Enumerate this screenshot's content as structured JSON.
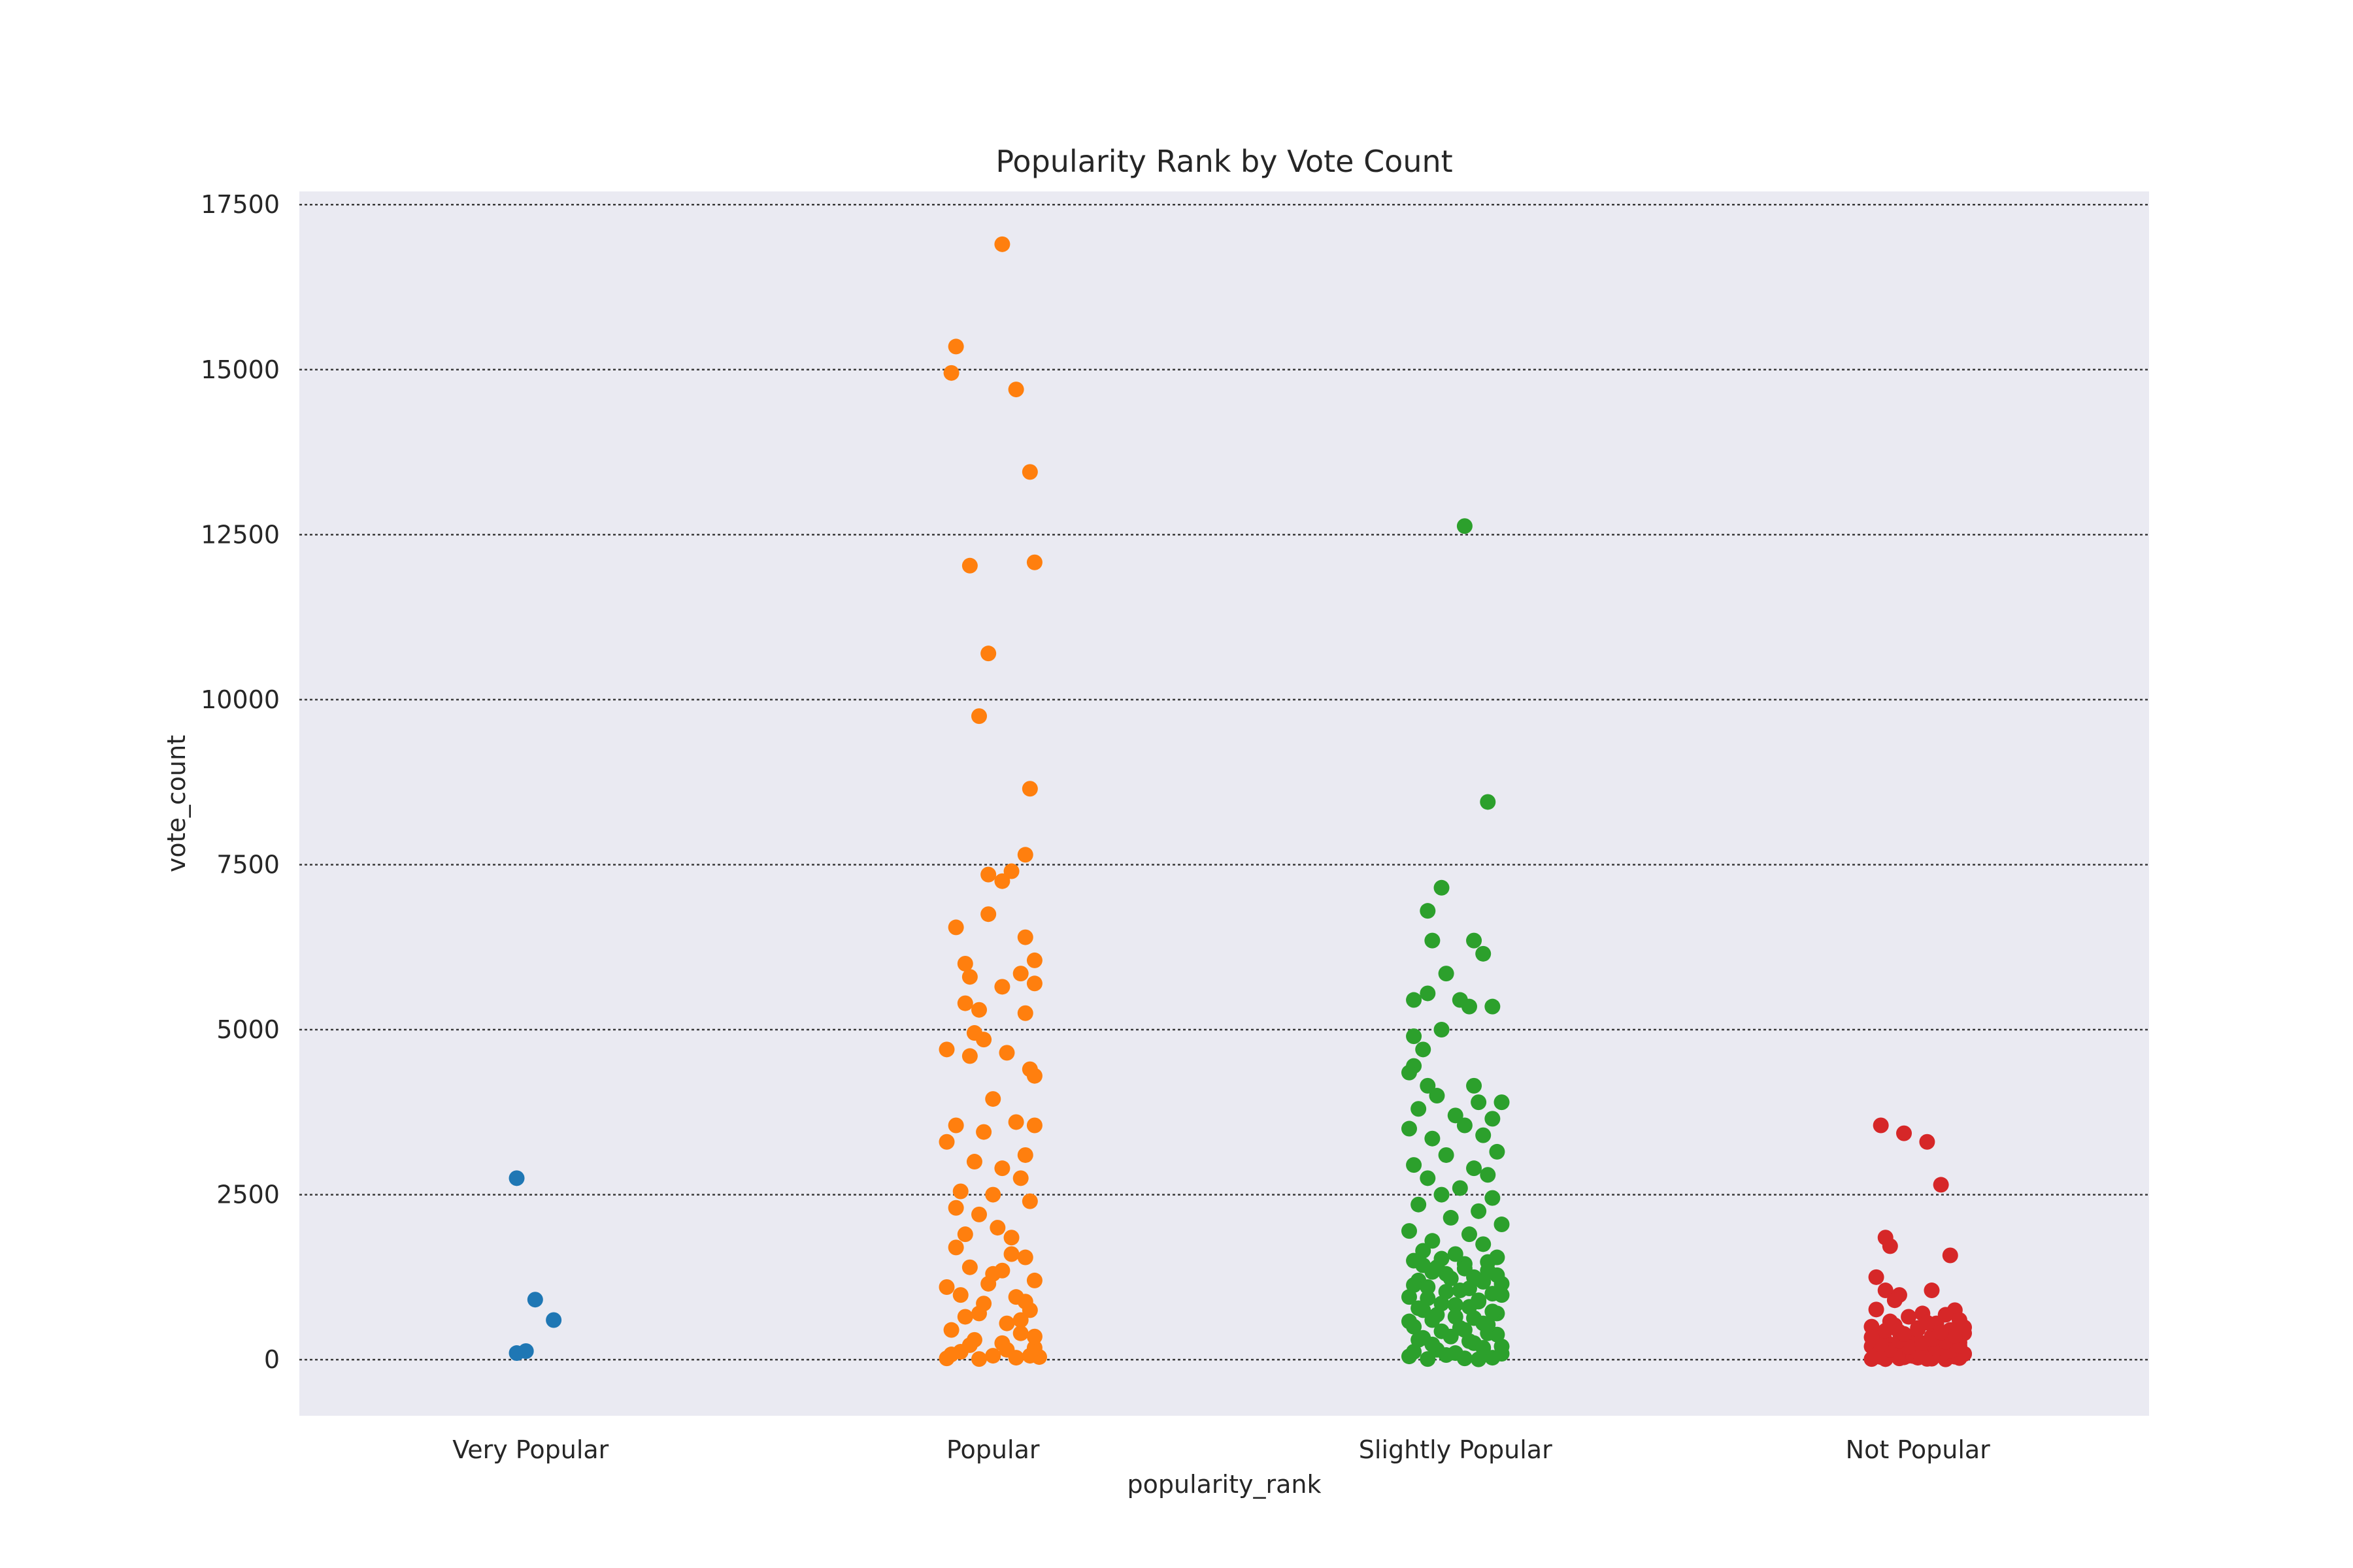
{
  "chart_data": {
    "type": "scatter",
    "subtype": "strip",
    "title": "Popularity Rank by Vote Count",
    "xlabel": "popularity_rank",
    "ylabel": "vote_count",
    "categories": [
      "Very Popular",
      "Popular",
      "Slightly Popular",
      "Not Popular"
    ],
    "ylim": [
      -850,
      17700
    ],
    "yticks": [
      0,
      2500,
      5000,
      7500,
      10000,
      12500,
      15000,
      17500
    ],
    "grid": "horizontal-dotted",
    "legend": "none",
    "colors": [
      "#1f77b4",
      "#ff7f0e",
      "#2ca02c",
      "#d62728"
    ],
    "series": [
      {
        "category": "Very Popular",
        "points": [
          [
            -0.03,
            2750
          ],
          [
            0.01,
            910
          ],
          [
            0.05,
            600
          ],
          [
            -0.03,
            100
          ],
          [
            -0.01,
            130
          ]
        ]
      },
      {
        "category": "Popular",
        "points": [
          [
            0.02,
            16900
          ],
          [
            -0.08,
            15350
          ],
          [
            -0.09,
            14950
          ],
          [
            0.05,
            14700
          ],
          [
            0.08,
            13450
          ],
          [
            -0.05,
            12030
          ],
          [
            0.09,
            12080
          ],
          [
            -0.01,
            10700
          ],
          [
            -0.03,
            9750
          ],
          [
            0.08,
            8650
          ],
          [
            0.07,
            7650
          ],
          [
            0.04,
            7400
          ],
          [
            -0.01,
            7350
          ],
          [
            0.02,
            7250
          ],
          [
            -0.01,
            6750
          ],
          [
            -0.08,
            6550
          ],
          [
            0.07,
            6400
          ],
          [
            0.09,
            6050
          ],
          [
            -0.06,
            6000
          ],
          [
            -0.05,
            5800
          ],
          [
            0.06,
            5850
          ],
          [
            0.02,
            5650
          ],
          [
            0.09,
            5700
          ],
          [
            -0.03,
            5300
          ],
          [
            0.07,
            5250
          ],
          [
            -0.06,
            5400
          ],
          [
            -0.04,
            4950
          ],
          [
            -0.02,
            4850
          ],
          [
            -0.1,
            4700
          ],
          [
            0.03,
            4650
          ],
          [
            0.08,
            4400
          ],
          [
            0.09,
            4300
          ],
          [
            -0.05,
            4600
          ],
          [
            0.0,
            3950
          ],
          [
            -0.08,
            3550
          ],
          [
            0.05,
            3600
          ],
          [
            0.09,
            3550
          ],
          [
            -0.02,
            3450
          ],
          [
            0.07,
            3100
          ],
          [
            -0.1,
            3300
          ],
          [
            -0.04,
            3000
          ],
          [
            0.02,
            2900
          ],
          [
            0.06,
            2750
          ],
          [
            -0.07,
            2550
          ],
          [
            0.08,
            2400
          ],
          [
            -0.03,
            2200
          ],
          [
            0.01,
            2000
          ],
          [
            0.04,
            1850
          ],
          [
            -0.08,
            1700
          ],
          [
            0.07,
            1550
          ],
          [
            -0.05,
            1400
          ],
          [
            0.0,
            1300
          ],
          [
            0.09,
            1200
          ],
          [
            -0.1,
            1100
          ],
          [
            0.05,
            950
          ],
          [
            -0.02,
            850
          ],
          [
            0.08,
            750
          ],
          [
            -0.06,
            650
          ],
          [
            0.03,
            550
          ],
          [
            -0.09,
            450
          ],
          [
            0.06,
            400
          ],
          [
            -0.04,
            300
          ],
          [
            0.02,
            250
          ],
          [
            0.09,
            180
          ],
          [
            -0.07,
            120
          ],
          [
            0.0,
            60
          ],
          [
            0.05,
            30
          ],
          [
            -0.03,
            10
          ],
          [
            -0.1,
            20
          ],
          [
            0.1,
            40
          ],
          [
            -0.08,
            2300
          ],
          [
            0.0,
            2500
          ],
          [
            -0.06,
            1900
          ],
          [
            0.04,
            1600
          ],
          [
            0.02,
            1350
          ],
          [
            -0.01,
            1150
          ],
          [
            -0.07,
            980
          ],
          [
            0.07,
            880
          ],
          [
            -0.03,
            700
          ],
          [
            0.06,
            600
          ],
          [
            0.09,
            350
          ],
          [
            -0.05,
            220
          ],
          [
            0.03,
            150
          ],
          [
            -0.09,
            80
          ],
          [
            0.08,
            60
          ]
        ]
      },
      {
        "category": "Slightly Popular",
        "points": [
          [
            0.02,
            12630
          ],
          [
            0.07,
            8450
          ],
          [
            -0.03,
            7150
          ],
          [
            -0.06,
            6800
          ],
          [
            -0.05,
            6350
          ],
          [
            0.04,
            6350
          ],
          [
            0.06,
            6150
          ],
          [
            -0.02,
            5850
          ],
          [
            -0.06,
            5550
          ],
          [
            -0.09,
            5450
          ],
          [
            0.01,
            5450
          ],
          [
            0.03,
            5350
          ],
          [
            0.08,
            5350
          ],
          [
            -0.03,
            5000
          ],
          [
            -0.09,
            4900
          ],
          [
            -0.07,
            4700
          ],
          [
            -0.09,
            4450
          ],
          [
            -0.1,
            4350
          ],
          [
            0.04,
            4150
          ],
          [
            -0.06,
            4150
          ],
          [
            -0.04,
            4000
          ],
          [
            0.05,
            3900
          ],
          [
            0.1,
            3900
          ],
          [
            -0.08,
            3800
          ],
          [
            0.0,
            3700
          ],
          [
            0.08,
            3650
          ],
          [
            -0.1,
            3500
          ],
          [
            0.02,
            3550
          ],
          [
            0.06,
            3400
          ],
          [
            -0.05,
            3350
          ],
          [
            0.09,
            3150
          ],
          [
            -0.02,
            3100
          ],
          [
            -0.09,
            2950
          ],
          [
            0.04,
            2900
          ],
          [
            0.07,
            2800
          ],
          [
            -0.06,
            2750
          ],
          [
            0.01,
            2600
          ],
          [
            -0.03,
            2500
          ],
          [
            0.08,
            2450
          ],
          [
            -0.08,
            2350
          ],
          [
            0.05,
            2250
          ],
          [
            -0.01,
            2150
          ],
          [
            0.1,
            2050
          ],
          [
            -0.1,
            1950
          ],
          [
            0.03,
            1900
          ],
          [
            -0.05,
            1800
          ],
          [
            0.06,
            1750
          ],
          [
            -0.07,
            1650
          ],
          [
            0.0,
            1600
          ],
          [
            0.09,
            1550
          ],
          [
            -0.09,
            1500
          ],
          [
            0.02,
            1450
          ],
          [
            -0.04,
            1400
          ],
          [
            0.07,
            1350
          ],
          [
            -0.02,
            1300
          ],
          [
            0.04,
            1250
          ],
          [
            -0.08,
            1200
          ],
          [
            0.1,
            1150
          ],
          [
            -0.06,
            1100
          ],
          [
            0.01,
            1050
          ],
          [
            0.08,
            1000
          ],
          [
            -0.1,
            950
          ],
          [
            0.05,
            900
          ],
          [
            -0.03,
            850
          ],
          [
            0.03,
            800
          ],
          [
            -0.07,
            750
          ],
          [
            0.09,
            700
          ],
          [
            0.0,
            650
          ],
          [
            -0.05,
            600
          ],
          [
            0.06,
            550
          ],
          [
            -0.09,
            500
          ],
          [
            0.02,
            450
          ],
          [
            0.07,
            400
          ],
          [
            -0.01,
            350
          ],
          [
            -0.08,
            300
          ],
          [
            0.04,
            250
          ],
          [
            0.1,
            200
          ],
          [
            -0.04,
            150
          ],
          [
            0.0,
            100
          ],
          [
            -0.1,
            50
          ],
          [
            0.08,
            30
          ],
          [
            -0.06,
            10
          ],
          [
            0.05,
            5
          ],
          [
            0.02,
            20
          ],
          [
            -0.02,
            70
          ],
          [
            0.1,
            90
          ],
          [
            -0.09,
            120
          ],
          [
            0.06,
            180
          ],
          [
            -0.05,
            230
          ],
          [
            0.03,
            280
          ],
          [
            -0.07,
            330
          ],
          [
            0.09,
            380
          ],
          [
            -0.03,
            430
          ],
          [
            0.01,
            480
          ],
          [
            0.07,
            530
          ],
          [
            -0.1,
            580
          ],
          [
            0.04,
            630
          ],
          [
            -0.04,
            680
          ],
          [
            0.08,
            730
          ],
          [
            -0.08,
            780
          ],
          [
            0.0,
            830
          ],
          [
            0.05,
            880
          ],
          [
            -0.06,
            930
          ],
          [
            0.1,
            980
          ],
          [
            -0.02,
            1030
          ],
          [
            0.03,
            1080
          ],
          [
            -0.09,
            1130
          ],
          [
            0.06,
            1180
          ],
          [
            -0.01,
            1230
          ],
          [
            0.09,
            1280
          ],
          [
            -0.05,
            1330
          ],
          [
            0.02,
            1380
          ],
          [
            -0.07,
            1430
          ],
          [
            0.07,
            1480
          ],
          [
            -0.03,
            1530
          ]
        ]
      },
      {
        "category": "Not Popular",
        "points": [
          [
            -0.08,
            3550
          ],
          [
            -0.03,
            3430
          ],
          [
            0.02,
            3300
          ],
          [
            0.05,
            2650
          ],
          [
            -0.07,
            1850
          ],
          [
            -0.06,
            1720
          ],
          [
            0.07,
            1580
          ],
          [
            -0.09,
            1250
          ],
          [
            -0.07,
            1050
          ],
          [
            0.03,
            1050
          ],
          [
            -0.04,
            980
          ],
          [
            -0.05,
            900
          ],
          [
            0.08,
            750
          ],
          [
            -0.09,
            760
          ],
          [
            0.01,
            700
          ],
          [
            0.06,
            680
          ],
          [
            -0.02,
            650
          ],
          [
            0.09,
            600
          ],
          [
            -0.06,
            580
          ],
          [
            0.04,
            550
          ],
          [
            -0.1,
            500
          ],
          [
            0.0,
            480
          ],
          [
            0.07,
            450
          ],
          [
            -0.04,
            420
          ],
          [
            0.1,
            400
          ],
          [
            -0.08,
            380
          ],
          [
            0.03,
            350
          ],
          [
            -0.01,
            330
          ],
          [
            0.06,
            300
          ],
          [
            -0.07,
            280
          ],
          [
            0.09,
            260
          ],
          [
            -0.03,
            240
          ],
          [
            0.02,
            220
          ],
          [
            -0.1,
            200
          ],
          [
            0.05,
            180
          ],
          [
            -0.05,
            160
          ],
          [
            0.08,
            140
          ],
          [
            -0.09,
            120
          ],
          [
            0.01,
            100
          ],
          [
            0.1,
            90
          ],
          [
            -0.06,
            80
          ],
          [
            0.04,
            70
          ],
          [
            -0.02,
            60
          ],
          [
            0.07,
            50
          ],
          [
            -0.08,
            40
          ],
          [
            0.0,
            30
          ],
          [
            0.09,
            25
          ],
          [
            -0.04,
            20
          ],
          [
            0.03,
            15
          ],
          [
            -0.1,
            10
          ],
          [
            0.06,
            5
          ],
          [
            -0.07,
            8
          ],
          [
            0.02,
            12
          ],
          [
            -0.03,
            35
          ],
          [
            0.08,
            45
          ],
          [
            -0.01,
            55
          ],
          [
            0.05,
            65
          ],
          [
            -0.09,
            75
          ],
          [
            0.1,
            85
          ],
          [
            -0.05,
            95
          ],
          [
            0.0,
            110
          ],
          [
            0.07,
            130
          ],
          [
            -0.06,
            150
          ],
          [
            0.04,
            170
          ],
          [
            -0.02,
            190
          ],
          [
            0.09,
            210
          ],
          [
            -0.08,
            230
          ],
          [
            0.01,
            250
          ],
          [
            0.06,
            270
          ],
          [
            -0.04,
            290
          ],
          [
            0.03,
            310
          ],
          [
            -0.1,
            340
          ],
          [
            0.08,
            360
          ],
          [
            -0.03,
            390
          ],
          [
            0.05,
            410
          ],
          [
            -0.07,
            440
          ],
          [
            0.0,
            460
          ],
          [
            0.1,
            490
          ],
          [
            -0.05,
            520
          ],
          [
            0.02,
            560
          ]
        ]
      }
    ]
  }
}
